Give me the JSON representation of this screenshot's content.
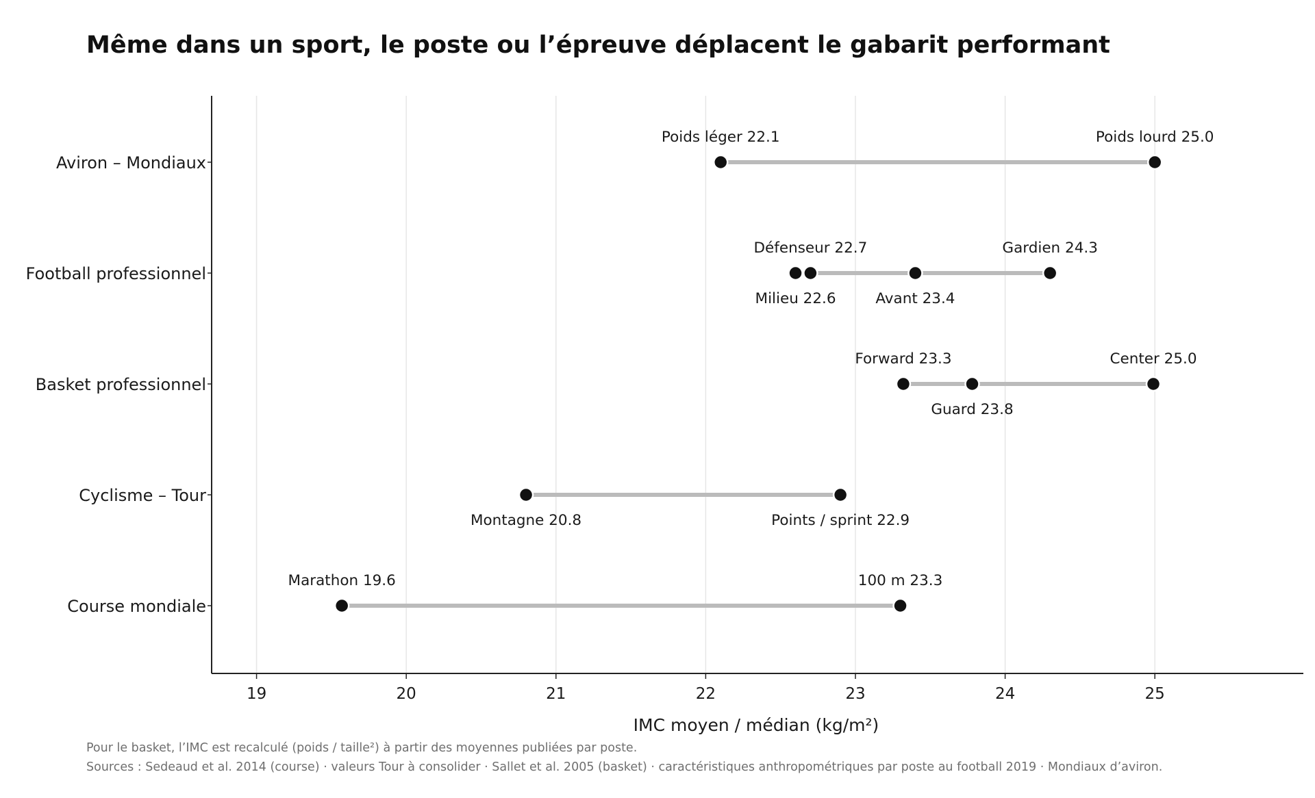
{
  "title": "Même dans un sport, le poste ou l’épreuve déplacent le gabarit performant",
  "footnotes": [
    "Pour le basket, l’IMC est recalculé (poids / taille²) à partir des moyennes publiées par poste.",
    "Sources : Sedeaud et al. 2014 (course) · valeurs Tour à consolider · Sallet et al. 2005 (basket) · caractéristiques anthropométriques par poste au football 2019 · Mondiaux d’aviron."
  ],
  "colors": {
    "point": "#111111",
    "range_line": "#bbbbbb",
    "grid": "#e6e6e6",
    "axis": "#222222",
    "footnote": "#6f6f6f"
  },
  "chart_data": {
    "type": "dot-range",
    "title": "Même dans un sport, le poste ou l’épreuve déplacent le gabarit performant",
    "xlabel": "IMC moyen / médian (kg/m²)",
    "ylabel": "",
    "xlim": [
      18.7,
      25.99
    ],
    "xticks": [
      19,
      20,
      21,
      22,
      23,
      24,
      25
    ],
    "grid": "vertical",
    "legend": "none",
    "categories": [
      "Aviron – Mondiaux",
      "Football professionnel",
      "Basket professionnel",
      "Cyclisme – Tour",
      "Course mondiale"
    ],
    "series": [
      {
        "category": "Aviron – Mondiaux",
        "points": [
          {
            "label": "Poids léger 22.1",
            "value": 22.1,
            "label_pos": "above"
          },
          {
            "label": "Poids lourd 25.0",
            "value": 25.0,
            "label_pos": "above"
          }
        ]
      },
      {
        "category": "Football professionnel",
        "points": [
          {
            "label": "Milieu 22.6",
            "value": 22.6,
            "label_pos": "below"
          },
          {
            "label": "Défenseur 22.7",
            "value": 22.7,
            "label_pos": "above"
          },
          {
            "label": "Avant 23.4",
            "value": 23.4,
            "label_pos": "below"
          },
          {
            "label": "Gardien 24.3",
            "value": 24.3,
            "label_pos": "above"
          }
        ]
      },
      {
        "category": "Basket professionnel",
        "points": [
          {
            "label": "Forward 23.3",
            "value": 23.32,
            "label_pos": "above"
          },
          {
            "label": "Guard 23.8",
            "value": 23.78,
            "label_pos": "below"
          },
          {
            "label": "Center 25.0",
            "value": 24.99,
            "label_pos": "above"
          }
        ]
      },
      {
        "category": "Cyclisme – Tour",
        "points": [
          {
            "label": "Montagne 20.8",
            "value": 20.8,
            "label_pos": "below"
          },
          {
            "label": "Points / sprint 22.9",
            "value": 22.9,
            "label_pos": "below"
          }
        ]
      },
      {
        "category": "Course mondiale",
        "points": [
          {
            "label": "Marathon 19.6",
            "value": 19.57,
            "label_pos": "above"
          },
          {
            "label": "100 m 23.3",
            "value": 23.3,
            "label_pos": "above"
          }
        ]
      }
    ]
  }
}
